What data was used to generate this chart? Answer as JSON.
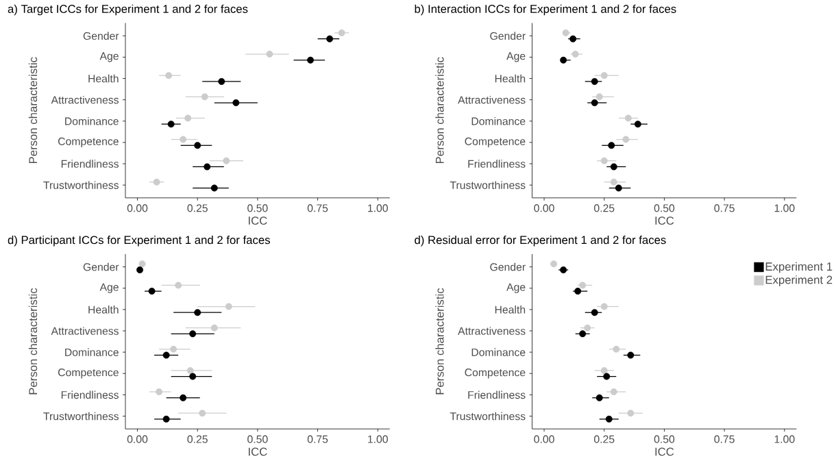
{
  "chart_data": [
    {
      "type": "scatter",
      "orientation": "horizontal",
      "title": "a) Target ICCs for Experiment 1 and 2 for faces",
      "xlabel": "ICC",
      "ylabel": "Person characteristic",
      "categories": [
        "Gender",
        "Age",
        "Health",
        "Attractiveness",
        "Dominance",
        "Competence",
        "Friendliness",
        "Trustworthiness"
      ],
      "xlim": [
        -0.05,
        1.05
      ],
      "xticks": [
        {
          "value": 0,
          "label": "0.00"
        },
        {
          "value": 0.25,
          "label": "0.25"
        },
        {
          "value": 0.5,
          "label": "0.50"
        },
        {
          "value": 0.75,
          "label": "0.75"
        },
        {
          "value": 1,
          "label": "1.00"
        }
      ],
      "series": [
        {
          "color": "#000000",
          "values": [
            0.8,
            0.72,
            0.35,
            0.41,
            0.14,
            0.25,
            0.29,
            0.32
          ],
          "errors": [
            [
              0.75,
              0.84
            ],
            [
              0.65,
              0.78
            ],
            [
              0.27,
              0.43
            ],
            [
              0.32,
              0.5
            ],
            [
              0.1,
              0.18
            ],
            [
              0.18,
              0.31
            ],
            [
              0.23,
              0.36
            ],
            [
              0.23,
              0.38
            ]
          ]
        },
        {
          "color": "#cccccc",
          "values": [
            0.85,
            0.55,
            0.13,
            0.28,
            0.21,
            0.19,
            0.37,
            0.08
          ],
          "errors": [
            [
              0.82,
              0.88
            ],
            [
              0.45,
              0.63
            ],
            [
              0.09,
              0.18
            ],
            [
              0.2,
              0.36
            ],
            [
              0.16,
              0.28
            ],
            [
              0.14,
              0.25
            ],
            [
              0.3,
              0.44
            ],
            [
              0.05,
              0.11
            ]
          ]
        }
      ]
    },
    {
      "type": "scatter",
      "orientation": "horizontal",
      "title": "b) Interaction ICCs for Experiment 1 and 2 for faces",
      "xlabel": "ICC",
      "ylabel": "Person characteristic",
      "categories": [
        "Gender",
        "Age",
        "Health",
        "Attractiveness",
        "Dominance",
        "Competence",
        "Friendliness",
        "Trustworthiness"
      ],
      "xlim": [
        -0.05,
        1.05
      ],
      "xticks": [
        {
          "value": 0,
          "label": "0.00"
        },
        {
          "value": 0.25,
          "label": "0.25"
        },
        {
          "value": 0.5,
          "label": "0.50"
        },
        {
          "value": 0.75,
          "label": "0.75"
        },
        {
          "value": 1,
          "label": "1.00"
        }
      ],
      "series": [
        {
          "color": "#000000",
          "values": [
            0.12,
            0.08,
            0.21,
            0.21,
            0.39,
            0.28,
            0.29,
            0.31
          ],
          "errors": [
            [
              0.1,
              0.15
            ],
            [
              0.07,
              0.11
            ],
            [
              0.17,
              0.24
            ],
            [
              0.18,
              0.26
            ],
            [
              0.36,
              0.43
            ],
            [
              0.24,
              0.33
            ],
            [
              0.26,
              0.34
            ],
            [
              0.27,
              0.36
            ]
          ]
        },
        {
          "color": "#cccccc",
          "values": [
            0.09,
            0.13,
            0.25,
            0.23,
            0.35,
            0.34,
            0.25,
            0.29
          ],
          "errors": [
            [
              0.08,
              0.11
            ],
            [
              0.11,
              0.16
            ],
            [
              0.21,
              0.31
            ],
            [
              0.2,
              0.29
            ],
            [
              0.31,
              0.39
            ],
            [
              0.3,
              0.39
            ],
            [
              0.22,
              0.3
            ],
            [
              0.25,
              0.34
            ]
          ]
        }
      ]
    },
    {
      "type": "scatter",
      "orientation": "horizontal",
      "title": "d) Participant ICCs for Experiment 1 and 2 for faces",
      "xlabel": "ICC",
      "ylabel": "Person characteristic",
      "categories": [
        "Gender",
        "Age",
        "Health",
        "Attractiveness",
        "Dominance",
        "Competence",
        "Friendliness",
        "Trustworthiness"
      ],
      "xlim": [
        -0.05,
        1.05
      ],
      "xticks": [
        {
          "value": 0,
          "label": "0.00"
        },
        {
          "value": 0.25,
          "label": "0.25"
        },
        {
          "value": 0.5,
          "label": "0.50"
        },
        {
          "value": 0.75,
          "label": "0.75"
        },
        {
          "value": 1,
          "label": "1.00"
        }
      ],
      "series": [
        {
          "color": "#000000",
          "values": [
            0.01,
            0.06,
            0.25,
            0.23,
            0.12,
            0.23,
            0.19,
            0.12
          ],
          "errors": [
            null,
            [
              0.03,
              0.1
            ],
            [
              0.15,
              0.35
            ],
            [
              0.14,
              0.32
            ],
            [
              0.07,
              0.17
            ],
            [
              0.14,
              0.31
            ],
            [
              0.12,
              0.26
            ],
            [
              0.07,
              0.18
            ]
          ]
        },
        {
          "color": "#cccccc",
          "values": [
            0.02,
            0.17,
            0.38,
            0.32,
            0.15,
            0.22,
            0.09,
            0.27
          ],
          "errors": [
            null,
            [
              0.1,
              0.26
            ],
            [
              0.25,
              0.49
            ],
            [
              0.2,
              0.43
            ],
            [
              0.09,
              0.22
            ],
            [
              0.14,
              0.31
            ],
            [
              0.05,
              0.14
            ],
            [
              0.17,
              0.37
            ]
          ]
        }
      ]
    },
    {
      "type": "scatter",
      "orientation": "horizontal",
      "title": "d) Residual error for Experiment 1 and 2 for faces",
      "xlabel": "ICC",
      "ylabel": "Person characteristic",
      "legend": "top right",
      "categories": [
        "Gender",
        "Age",
        "Health",
        "Attractiveness",
        "Dominance",
        "Competence",
        "Friendliness",
        "Trustworthiness"
      ],
      "xlim": [
        -0.05,
        1.05
      ],
      "xticks": [
        {
          "value": 0,
          "label": "0.00"
        },
        {
          "value": 0.25,
          "label": "0.25"
        },
        {
          "value": 0.5,
          "label": "0.50"
        },
        {
          "value": 0.75,
          "label": "0.75"
        },
        {
          "value": 1,
          "label": "1.00"
        }
      ],
      "series": [
        {
          "name": "Experiment 1",
          "color": "#000000",
          "values": [
            0.08,
            0.14,
            0.21,
            0.16,
            0.36,
            0.26,
            0.23,
            0.27
          ],
          "errors": [
            [
              0.06,
              0.1
            ],
            [
              0.12,
              0.18
            ],
            [
              0.17,
              0.24
            ],
            [
              0.13,
              0.19
            ],
            [
              0.33,
              0.4
            ],
            [
              0.22,
              0.3
            ],
            [
              0.2,
              0.27
            ],
            [
              0.23,
              0.31
            ]
          ]
        },
        {
          "name": "Experiment 2",
          "color": "#cccccc",
          "values": [
            0.04,
            0.16,
            0.25,
            0.18,
            0.3,
            0.25,
            0.29,
            0.36
          ],
          "errors": [
            null,
            [
              0.14,
              0.2
            ],
            [
              0.22,
              0.31
            ],
            [
              0.15,
              0.21
            ],
            [
              0.27,
              0.34
            ],
            [
              0.21,
              0.29
            ],
            [
              0.26,
              0.34
            ],
            [
              0.31,
              0.41
            ]
          ]
        }
      ]
    }
  ]
}
